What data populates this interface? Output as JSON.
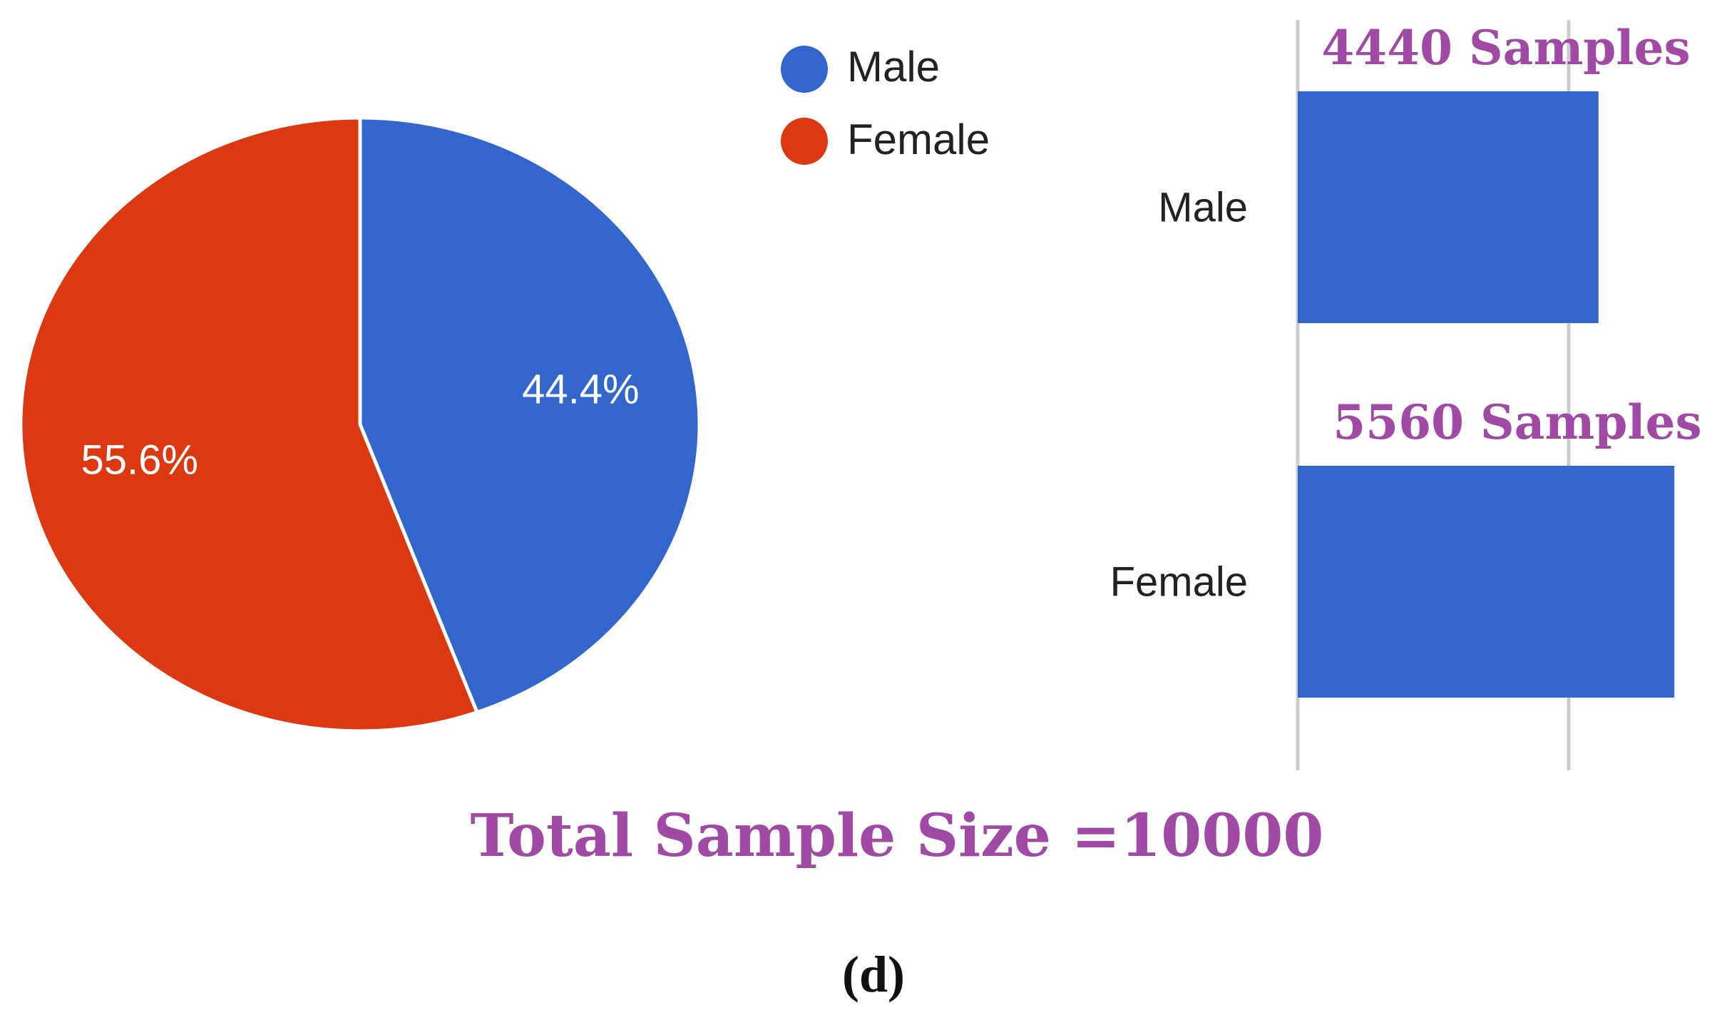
{
  "chart_data": [
    {
      "type": "pie",
      "categories": [
        "Male",
        "Female"
      ],
      "values": [
        44.4,
        55.6
      ],
      "data_labels": [
        "44.4%",
        "55.6%"
      ],
      "colors": [
        "#3366cc",
        "#dc3912"
      ],
      "legend": {
        "position": "top-right",
        "entries": [
          {
            "label": "Male",
            "color": "#3366cc"
          },
          {
            "label": "Female",
            "color": "#dc3912"
          }
        ]
      }
    },
    {
      "type": "bar",
      "orientation": "horizontal",
      "categories": [
        "Male",
        "Female"
      ],
      "values": [
        4440,
        5560
      ],
      "data_labels": [
        "4440 Samples",
        "5560 Samples"
      ],
      "xlim": [
        0,
        6000
      ],
      "gridlines": [
        0,
        4000
      ],
      "grid": true,
      "color": "#3366cc",
      "label_color": "#a04aa6"
    }
  ],
  "caption": "Total Sample Size =10000",
  "panel_label": "(d)"
}
